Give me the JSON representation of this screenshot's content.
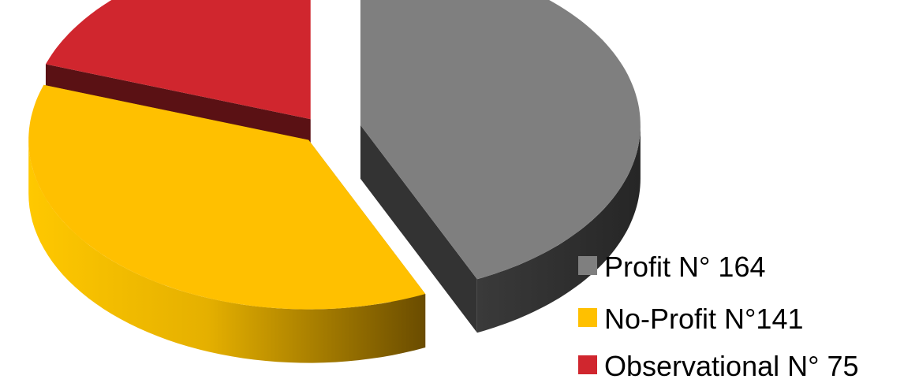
{
  "chart_data": {
    "type": "pie",
    "style": "3d-exploded",
    "title": "",
    "slices": [
      {
        "label": "Profit N° 164",
        "value": 164,
        "color": "#7f7f7f",
        "side_color": "#333333"
      },
      {
        "label": "No-Profit N°141",
        "value": 141,
        "color": "#ffc000",
        "side_color": "#a07800"
      },
      {
        "label": "Observational N° 75",
        "value": 75,
        "color": "#d0262e",
        "side_color": "#5a1114"
      }
    ],
    "legend_position": "bottom-right"
  }
}
